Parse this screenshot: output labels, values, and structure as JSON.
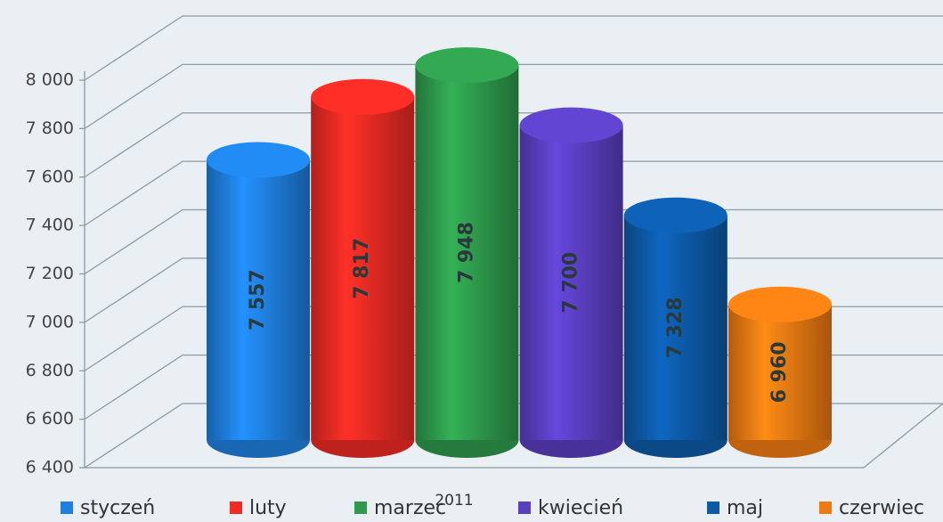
{
  "chart_data": {
    "type": "bar",
    "categories": [
      "styczeń",
      "luty",
      "marzec",
      "kwiecień",
      "maj",
      "czerwiec"
    ],
    "values": [
      7557,
      7817,
      7948,
      7700,
      7328,
      6960
    ],
    "value_labels": [
      "7 557",
      "7 817",
      "7 948",
      "7 700",
      "7 328",
      "6 960"
    ],
    "colors": [
      "#1f7fe0",
      "#ef2b24",
      "#2e9a4c",
      "#5a3fc0",
      "#0d5aa8",
      "#f07a12"
    ],
    "x_label": "2011",
    "ylim": [
      6400,
      8000
    ],
    "yticks": [
      {
        "value": 6400,
        "label": "6 400"
      },
      {
        "value": 6600,
        "label": "6 600"
      },
      {
        "value": 6800,
        "label": "6 800"
      },
      {
        "value": 7000,
        "label": "7 000"
      },
      {
        "value": 7200,
        "label": "7 200"
      },
      {
        "value": 7400,
        "label": "7 400"
      },
      {
        "value": 7600,
        "label": "7 600"
      },
      {
        "value": 7800,
        "label": "7 800"
      },
      {
        "value": 8000,
        "label": "8 000"
      }
    ],
    "grid": true
  }
}
